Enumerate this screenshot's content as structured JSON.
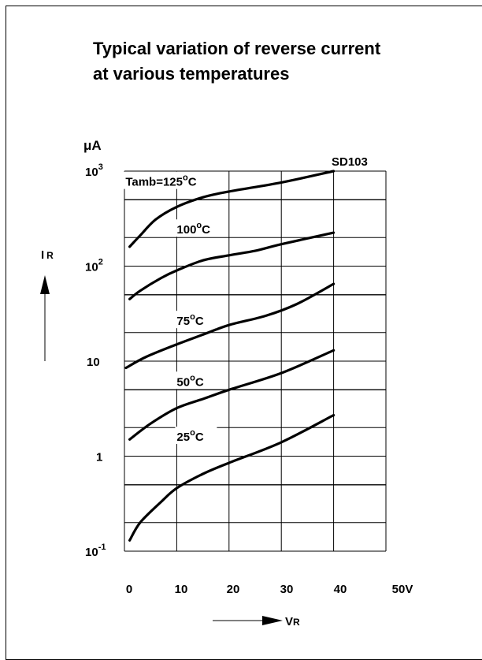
{
  "title_line1": "Typical variation of reverse current",
  "title_line2": "at various temperatures",
  "chart_data": {
    "type": "line",
    "title": "Typical variation of reverse current at various temperatures",
    "part_label": "SD103",
    "ylabel": "IR",
    "y_unit": "μA",
    "xlabel": "VR",
    "y_scale": "log",
    "xlim": [
      0,
      50
    ],
    "ylim": [
      0.1,
      1000
    ],
    "grid": true,
    "x_ticks": [
      "0",
      "10",
      "20",
      "30",
      "40",
      "50V"
    ],
    "y_ticks": [
      {
        "base": "10",
        "exp": "3",
        "value": 1000
      },
      {
        "base": "10",
        "exp": "2",
        "value": 100
      },
      {
        "base": "10",
        "exp": "",
        "value": 10
      },
      {
        "base": "1",
        "exp": "",
        "value": 1
      },
      {
        "base": "10",
        "exp": "-1",
        "value": 0.1
      }
    ],
    "series": [
      {
        "name": "Tamb=125°C",
        "label_parts": [
          "Tamb=125",
          "o",
          "C"
        ],
        "label_at": [
          0.2,
          700
        ],
        "points": [
          [
            1,
            160
          ],
          [
            3,
            210
          ],
          [
            6,
            310
          ],
          [
            10,
            420
          ],
          [
            15,
            530
          ],
          [
            20,
            610
          ],
          [
            30,
            760
          ],
          [
            40,
            1000
          ]
        ]
      },
      {
        "name": "100°C",
        "label_parts": [
          "100",
          "o",
          "C"
        ],
        "label_at": [
          10,
          220
        ],
        "points": [
          [
            1,
            45
          ],
          [
            3,
            55
          ],
          [
            7,
            75
          ],
          [
            10,
            90
          ],
          [
            15,
            115
          ],
          [
            20,
            130
          ],
          [
            25,
            145
          ],
          [
            30,
            170
          ],
          [
            40,
            225
          ]
        ]
      },
      {
        "name": "75°C",
        "label_parts": [
          "75",
          "o",
          "C"
        ],
        "label_at": [
          10,
          24
        ],
        "points": [
          [
            0.3,
            8.5
          ],
          [
            4,
            11
          ],
          [
            10,
            15
          ],
          [
            15,
            19
          ],
          [
            20,
            24
          ],
          [
            27,
            30
          ],
          [
            33,
            40
          ],
          [
            40,
            65
          ]
        ]
      },
      {
        "name": "50°C",
        "label_parts": [
          "50",
          "o",
          "C"
        ],
        "label_at": [
          10,
          5.5
        ],
        "points": [
          [
            1,
            1.5
          ],
          [
            5,
            2.2
          ],
          [
            10,
            3.2
          ],
          [
            15,
            4.0
          ],
          [
            20,
            5.0
          ],
          [
            30,
            7.5
          ],
          [
            40,
            13
          ]
        ]
      },
      {
        "name": "25°C",
        "label_parts": [
          "25",
          "o",
          "C"
        ],
        "label_at": [
          10,
          1.45
        ],
        "points": [
          [
            1,
            0.13
          ],
          [
            3,
            0.2
          ],
          [
            7,
            0.33
          ],
          [
            10,
            0.46
          ],
          [
            15,
            0.65
          ],
          [
            20,
            0.85
          ],
          [
            30,
            1.4
          ],
          [
            40,
            2.7
          ]
        ]
      }
    ]
  }
}
